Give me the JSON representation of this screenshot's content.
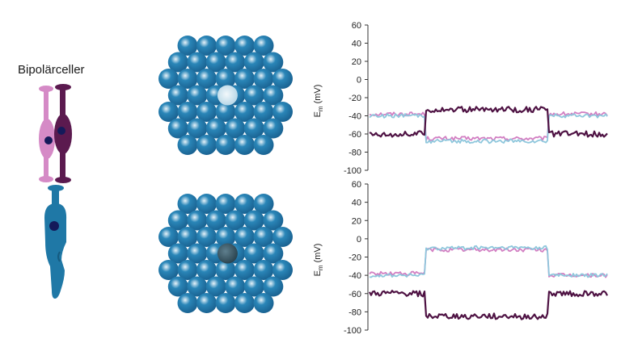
{
  "cells_label": "Bipolärceller",
  "colors": {
    "pink_cell": "#d58ac6",
    "purple_cell": "#5b1a4f",
    "blue_cell": "#1f78a6",
    "nucleus": "#141a5a",
    "rod_light": "#1f6fa8",
    "stimulated_light": "#cde3ef",
    "stimulated_dark": "#2e4a56",
    "trace_pink": "#d27ec2",
    "trace_blue": "#8ec7dc",
    "trace_purple": "#4e1243"
  },
  "plots": [
    {
      "ylabel_main": "E",
      "ylabel_sub": "m",
      "ylabel_unit": "(mV)",
      "ticks": [
        60,
        40,
        20,
        0,
        -20,
        -40,
        -60,
        -80,
        -100
      ],
      "tick_labels": [
        "60",
        "40",
        "20",
        "0",
        "-20",
        "-40",
        "-60",
        "-80",
        "-100"
      ]
    },
    {
      "ylabel_main": "E",
      "ylabel_sub": "m",
      "ylabel_unit": "(mV)",
      "ticks": [
        60,
        40,
        20,
        0,
        -20,
        -40,
        -60,
        -80,
        -100
      ],
      "tick_labels": [
        "60",
        "40",
        "20",
        "0",
        "-20",
        "-40",
        "-60",
        "-80",
        "-100"
      ]
    }
  ],
  "chart_data": [
    {
      "type": "line",
      "ylim": [
        -100,
        60
      ],
      "x": [
        0,
        1,
        2
      ],
      "series": [
        {
          "color_key": "trace_pink",
          "values": [
            -38,
            -65,
            -38
          ]
        },
        {
          "color_key": "trace_blue",
          "values": [
            -40,
            -68,
            -40
          ]
        },
        {
          "color_key": "trace_purple",
          "values": [
            -60,
            -33,
            -60
          ]
        }
      ]
    },
    {
      "type": "line",
      "ylim": [
        -100,
        60
      ],
      "x": [
        0,
        1,
        2
      ],
      "series": [
        {
          "color_key": "trace_pink",
          "values": [
            -38,
            -12,
            -40
          ]
        },
        {
          "color_key": "trace_blue",
          "values": [
            -40,
            -10,
            -40
          ]
        },
        {
          "color_key": "trace_purple",
          "values": [
            -60,
            -85,
            -60
          ]
        }
      ]
    }
  ]
}
